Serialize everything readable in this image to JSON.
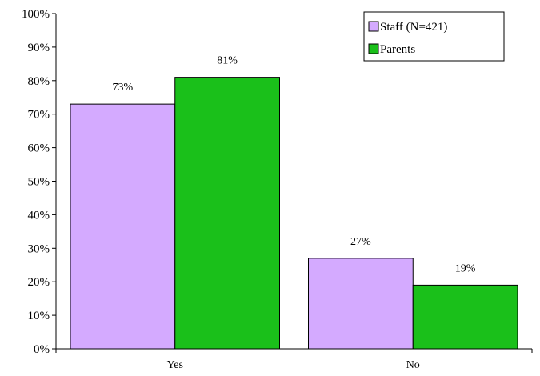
{
  "chart_data": {
    "type": "bar",
    "title": "",
    "xlabel": "",
    "ylabel": "",
    "categories": [
      "Yes",
      "No"
    ],
    "series": [
      {
        "name": "Staff (N=421)",
        "values": [
          73,
          27
        ],
        "color": "#d4aaff"
      },
      {
        "name": "Parents",
        "values": [
          81,
          19
        ],
        "color": "#1ac01a"
      }
    ],
    "data_labels": [
      [
        "73%",
        "27%"
      ],
      [
        "81%",
        "19%"
      ]
    ],
    "ylim": [
      0,
      100
    ],
    "yticks": [
      "0%",
      "10%",
      "20%",
      "30%",
      "40%",
      "50%",
      "60%",
      "70%",
      "80%",
      "90%",
      "100%"
    ],
    "grid": false,
    "legend": "top-right"
  }
}
